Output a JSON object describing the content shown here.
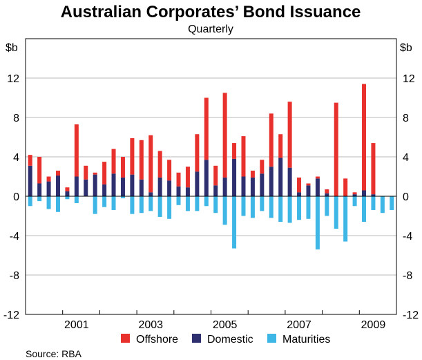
{
  "chart_data": {
    "type": "bar",
    "stacked": true,
    "title": "Australian Corporates’ Bond Issuance",
    "subtitle": "Quarterly",
    "yunit_left": "$b",
    "yunit_right": "$b",
    "ylim": [
      -12,
      16
    ],
    "yticks": [
      12,
      8,
      4,
      0,
      -4,
      -8,
      -12
    ],
    "ytick_labels": [
      "12",
      "8",
      "4",
      "0",
      "-4",
      "-8",
      "-12"
    ],
    "year_labels": [
      "2001",
      "2003",
      "2005",
      "2007",
      "2009"
    ],
    "year_labels_quarter_offset": [
      5.5,
      13.5,
      21.5,
      29.5,
      37.5
    ],
    "year_boundaries_quarter": [
      4,
      8,
      12,
      16,
      20,
      24,
      28,
      32,
      36,
      40
    ],
    "categories": [
      "Q1 2000",
      "Q2 2000",
      "Q3 2000",
      "Q4 2000",
      "Q1 2001",
      "Q2 2001",
      "Q3 2001",
      "Q4 2001",
      "Q1 2002",
      "Q2 2002",
      "Q3 2002",
      "Q4 2002",
      "Q1 2003",
      "Q2 2003",
      "Q3 2003",
      "Q4 2003",
      "Q1 2004",
      "Q2 2004",
      "Q3 2004",
      "Q4 2004",
      "Q1 2005",
      "Q2 2005",
      "Q3 2005",
      "Q4 2005",
      "Q1 2006",
      "Q2 2006",
      "Q3 2006",
      "Q4 2006",
      "Q1 2007",
      "Q2 2007",
      "Q3 2007",
      "Q4 2007",
      "Q1 2008",
      "Q2 2008",
      "Q3 2008",
      "Q4 2008",
      "Q1 2009",
      "Q2 2009",
      "Q3 2009",
      "Q4 2009"
    ],
    "series": [
      {
        "name": "Domestic",
        "color": "#2e2f6e",
        "values": [
          3.1,
          1.3,
          1.5,
          2.1,
          0.5,
          2.0,
          1.7,
          2.2,
          1.2,
          2.3,
          1.9,
          2.2,
          1.7,
          0.4,
          1.9,
          1.6,
          1.0,
          0.9,
          2.5,
          3.7,
          1.1,
          1.9,
          3.8,
          2.0,
          1.9,
          2.3,
          3.0,
          3.9,
          2.9,
          0.4,
          1.1,
          1.8,
          0.3,
          0,
          0,
          0.2,
          0.6,
          0.2,
          0,
          0
        ]
      },
      {
        "name": "Offshore",
        "color": "#e8302c",
        "values": [
          1.1,
          2.7,
          0.5,
          0.5,
          0.4,
          5.3,
          1.4,
          0.2,
          2.3,
          2.5,
          2.1,
          3.7,
          4.0,
          5.8,
          2.7,
          2.1,
          1.4,
          2.1,
          3.8,
          6.3,
          2.0,
          8.6,
          1.6,
          4.1,
          0.7,
          1.4,
          5.4,
          2.4,
          6.7,
          1.5,
          0.2,
          0.2,
          0.4,
          9.5,
          1.8,
          0.2,
          10.8,
          5.2,
          0,
          0
        ]
      },
      {
        "name": "Maturities",
        "color": "#3fb7e6",
        "values": [
          -1.0,
          -0.5,
          -1.3,
          -1.6,
          -0.3,
          -0.7,
          0,
          -1.8,
          -1.1,
          -1.4,
          -0.2,
          -1.8,
          -1.7,
          -1.5,
          -2.1,
          -2.3,
          -0.9,
          -1.5,
          -1.5,
          -1.0,
          -1.7,
          -2.9,
          -5.3,
          -2.0,
          -2.2,
          -1.5,
          -2.2,
          -2.6,
          -2.7,
          -2.4,
          -2.3,
          -5.4,
          -2.0,
          -3.3,
          -4.6,
          -1.0,
          -2.6,
          -1.4,
          -1.7,
          -1.4
        ]
      }
    ],
    "legend": [
      "Offshore",
      "Domestic",
      "Maturities"
    ],
    "legend_position": "bottom",
    "grid": "horizontal",
    "source": "Source: RBA"
  }
}
